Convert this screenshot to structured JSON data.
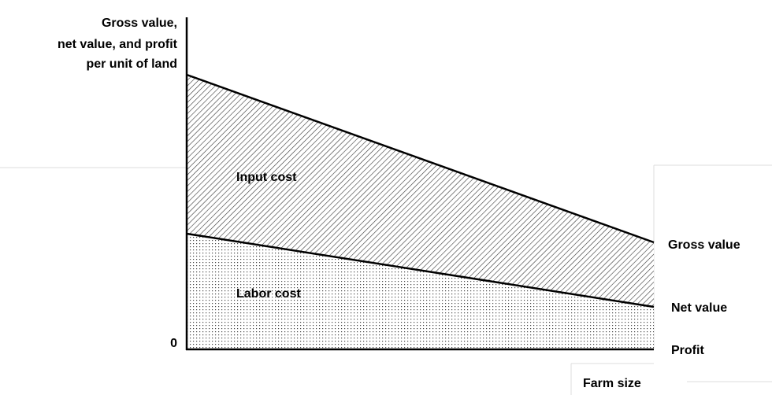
{
  "axis": {
    "y_label": [
      "Gross value,",
      "net value, and profit",
      "per unit of land"
    ],
    "origin": "0",
    "x_label": "Farm size"
  },
  "regions": {
    "upper": "Input cost",
    "lower": "Labor cost"
  },
  "lines": {
    "top": "Gross value",
    "middle": "Net value",
    "bottom": "Profit"
  }
}
